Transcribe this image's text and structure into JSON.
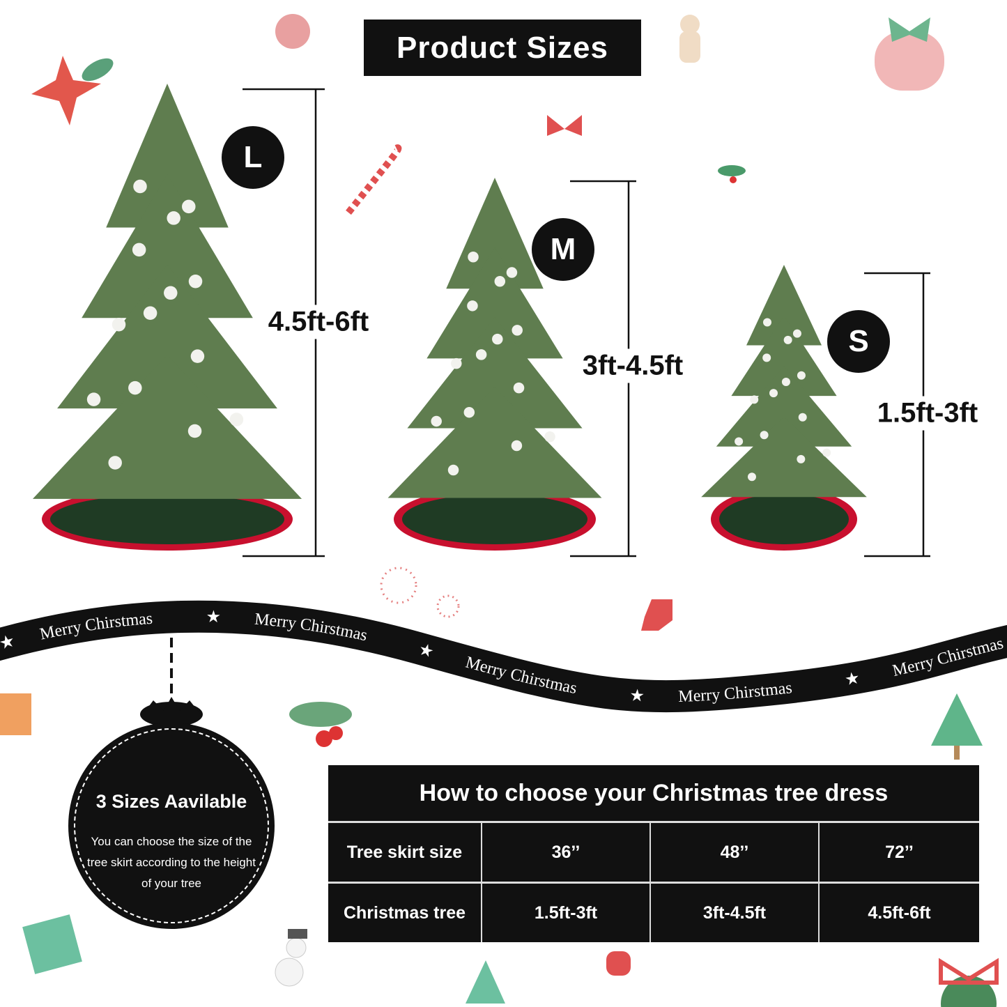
{
  "title": "Product Sizes",
  "sizes": [
    {
      "badge": "L",
      "range": "4.5ft-6ft"
    },
    {
      "badge": "M",
      "range": "3ft-4.5ft"
    },
    {
      "badge": "S",
      "range": "1.5ft-3ft"
    }
  ],
  "ribbon": {
    "text": "Merry Chirstmas",
    "star": "★"
  },
  "ornament": {
    "title": "3 Sizes Aavilable",
    "body": "You can choose the size of the tree skirt according to the height of your tree"
  },
  "table": {
    "header": "How to choose your Christmas tree dress",
    "rows": [
      {
        "label": "Tree skirt size",
        "values": [
          "36’’",
          "48’’",
          "72’’"
        ]
      },
      {
        "label": "Christmas tree",
        "values": [
          "1.5ft-3ft",
          "3ft-4.5ft",
          "4.5ft-6ft"
        ]
      }
    ]
  },
  "colors": {
    "black": "#111111",
    "tree_green": "#5f7d4f",
    "skirt_red": "#c8102e",
    "skirt_green": "#1f3b24"
  }
}
